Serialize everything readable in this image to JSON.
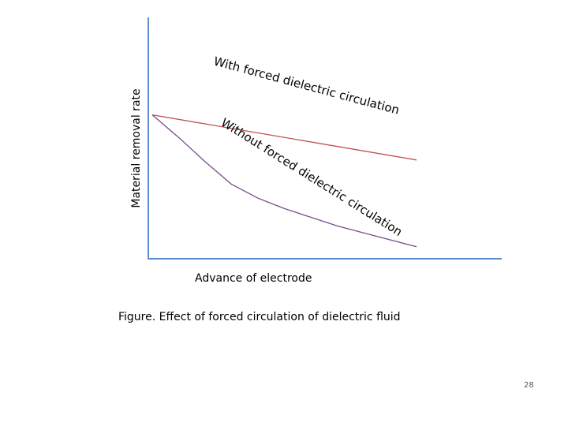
{
  "chart_data": {
    "type": "line",
    "title": "",
    "xlabel": "Advance of electrode",
    "ylabel": "Material removal rate",
    "xlim": [
      0,
      10
    ],
    "ylim": [
      0,
      10
    ],
    "grid": false,
    "series": [
      {
        "name": "With forced dielectric circulation",
        "color": "#c0504d",
        "x": [
          0,
          10
        ],
        "y": [
          7.7,
          5.1
        ]
      },
      {
        "name": "Without forced dielectric circulation",
        "color": "#7a4b8c",
        "x": [
          0,
          1,
          2,
          3,
          4,
          5,
          6,
          7,
          8,
          9,
          10
        ],
        "y": [
          7.7,
          6.4,
          5.0,
          3.7,
          2.9,
          2.3,
          1.8,
          1.3,
          0.9,
          0.5,
          0.1
        ]
      }
    ]
  },
  "caption": "Figure. Effect of forced circulation of dielectric fluid",
  "page_number": "28",
  "colors": {
    "axis": "#5b8ccf",
    "text": "#000000"
  }
}
